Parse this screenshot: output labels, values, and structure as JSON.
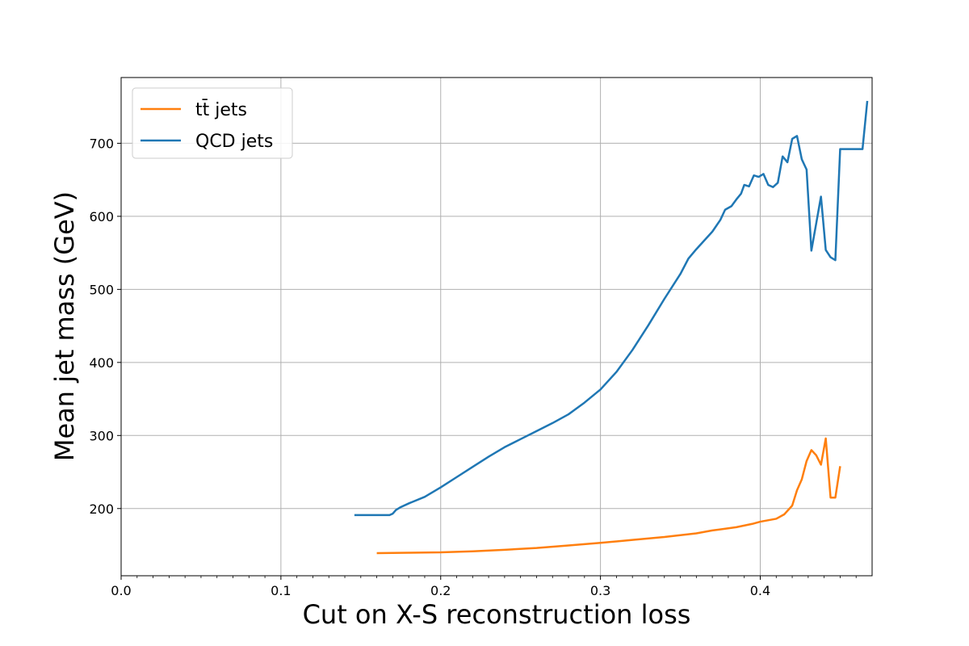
{
  "chart_data": {
    "type": "line",
    "title": "",
    "xlabel": "Cut on X-S reconstruction loss",
    "ylabel": "Mean jet mass (GeV)",
    "xlim": [
      0.0,
      0.47
    ],
    "ylim": [
      108,
      790
    ],
    "x_ticks": [
      0.0,
      0.1,
      0.2,
      0.3,
      0.4
    ],
    "x_tick_labels": [
      "0.0",
      "0.1",
      "0.2",
      "0.3",
      "0.4"
    ],
    "y_ticks": [
      200,
      300,
      400,
      500,
      600,
      700
    ],
    "y_tick_labels": [
      "200",
      "300",
      "400",
      "500",
      "600",
      "700"
    ],
    "grid": true,
    "legend_position": "upper-left",
    "series": [
      {
        "name": "tt̄ jets",
        "color": "#ff7f0e",
        "points": [
          [
            0.16,
            139
          ],
          [
            0.18,
            139.5
          ],
          [
            0.2,
            140
          ],
          [
            0.22,
            141.5
          ],
          [
            0.24,
            143.5
          ],
          [
            0.26,
            146
          ],
          [
            0.28,
            149.5
          ],
          [
            0.3,
            153
          ],
          [
            0.32,
            157
          ],
          [
            0.34,
            161
          ],
          [
            0.35,
            163.5
          ],
          [
            0.36,
            166
          ],
          [
            0.37,
            170
          ],
          [
            0.38,
            173
          ],
          [
            0.385,
            174.5
          ],
          [
            0.395,
            179
          ],
          [
            0.4,
            182
          ],
          [
            0.41,
            186
          ],
          [
            0.415,
            192
          ],
          [
            0.42,
            204
          ],
          [
            0.423,
            225
          ],
          [
            0.426,
            240
          ],
          [
            0.429,
            265
          ],
          [
            0.432,
            280
          ],
          [
            0.435,
            273
          ],
          [
            0.438,
            260
          ],
          [
            0.441,
            296
          ],
          [
            0.444,
            215
          ],
          [
            0.447,
            215
          ],
          [
            0.45,
            258
          ]
        ]
      },
      {
        "name": "QCD jets",
        "color": "#1f77b4",
        "points": [
          [
            0.146,
            191
          ],
          [
            0.168,
            191
          ],
          [
            0.17,
            193
          ],
          [
            0.172,
            198
          ],
          [
            0.175,
            202
          ],
          [
            0.18,
            207
          ],
          [
            0.19,
            216
          ],
          [
            0.2,
            229
          ],
          [
            0.21,
            243
          ],
          [
            0.22,
            257
          ],
          [
            0.23,
            271
          ],
          [
            0.24,
            284
          ],
          [
            0.25,
            295
          ],
          [
            0.26,
            306
          ],
          [
            0.27,
            317
          ],
          [
            0.28,
            329
          ],
          [
            0.29,
            345
          ],
          [
            0.3,
            363
          ],
          [
            0.31,
            387
          ],
          [
            0.32,
            417
          ],
          [
            0.33,
            451
          ],
          [
            0.34,
            487
          ],
          [
            0.35,
            521
          ],
          [
            0.355,
            542
          ],
          [
            0.36,
            555
          ],
          [
            0.365,
            567
          ],
          [
            0.37,
            579
          ],
          [
            0.375,
            595
          ],
          [
            0.378,
            609
          ],
          [
            0.382,
            614
          ],
          [
            0.385,
            623
          ],
          [
            0.388,
            631
          ],
          [
            0.39,
            643
          ],
          [
            0.393,
            641
          ],
          [
            0.396,
            656
          ],
          [
            0.399,
            654
          ],
          [
            0.402,
            658
          ],
          [
            0.405,
            643
          ],
          [
            0.408,
            640
          ],
          [
            0.411,
            646
          ],
          [
            0.414,
            682
          ],
          [
            0.417,
            674
          ],
          [
            0.42,
            706
          ],
          [
            0.423,
            710
          ],
          [
            0.426,
            678
          ],
          [
            0.429,
            664
          ],
          [
            0.432,
            553
          ],
          [
            0.435,
            590
          ],
          [
            0.438,
            627
          ],
          [
            0.441,
            554
          ],
          [
            0.444,
            544
          ],
          [
            0.447,
            540
          ],
          [
            0.45,
            692
          ],
          [
            0.46,
            692
          ],
          [
            0.464,
            692
          ],
          [
            0.467,
            758
          ]
        ]
      }
    ]
  }
}
